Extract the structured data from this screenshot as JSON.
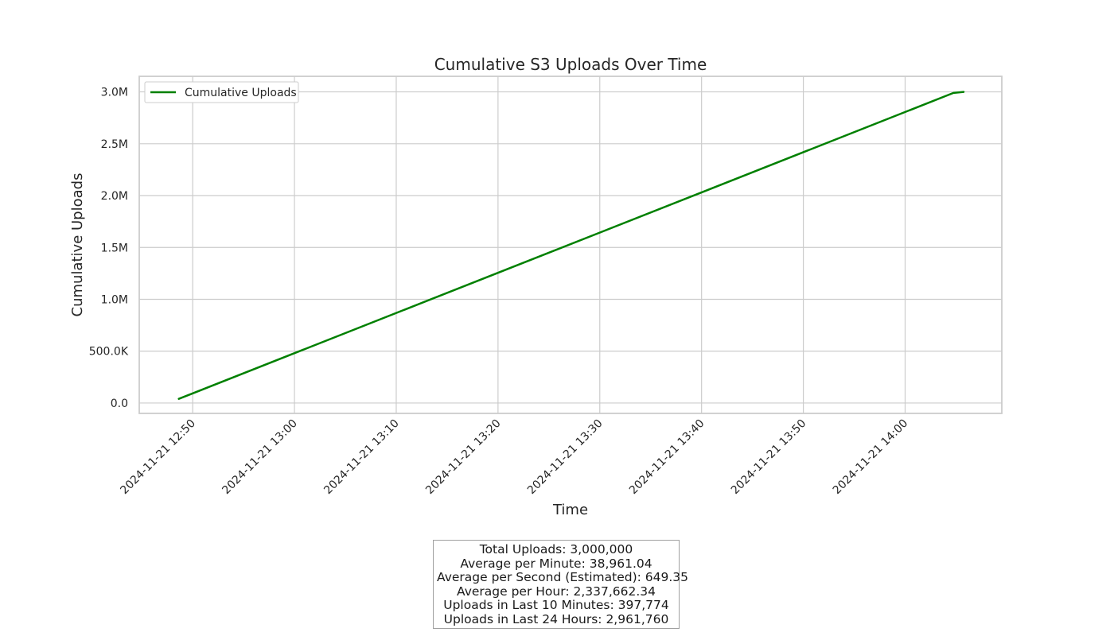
{
  "chart_data": {
    "type": "line",
    "title": "Cumulative S3 Uploads Over Time",
    "xlabel": "Time",
    "ylabel": "Cumulative Uploads",
    "x_ticks": [
      "2024-11-21 12:50",
      "2024-11-21 13:00",
      "2024-11-21 13:10",
      "2024-11-21 13:20",
      "2024-11-21 13:30",
      "2024-11-21 13:40",
      "2024-11-21 13:50",
      "2024-11-21 14:00"
    ],
    "y_ticks": [
      "0.0",
      "500.0K",
      "1.0M",
      "1.5M",
      "2.0M",
      "2.5M",
      "3.0M"
    ],
    "xlim": [
      "2024-11-21 12:44:45",
      "2024-11-21 14:09:30"
    ],
    "ylim": [
      -100000,
      3150000
    ],
    "grid": true,
    "legend": "top-left",
    "series": [
      {
        "name": "Cumulative Uploads",
        "color": "#008000",
        "x": [
          "2024-11-21 12:48:38",
          "2024-11-21 14:04:45",
          "2024-11-21 14:05:45"
        ],
        "y": [
          40000,
          2990000,
          3000000
        ]
      }
    ]
  },
  "stats": {
    "lines": [
      "Total Uploads: 3,000,000",
      "Average per Minute: 38,961.04",
      "Average per Second (Estimated): 649.35",
      "Average per Hour: 2,337,662.34",
      "Uploads in Last 10 Minutes: 397,774",
      "Uploads in Last 24 Hours: 2,961,760"
    ]
  }
}
